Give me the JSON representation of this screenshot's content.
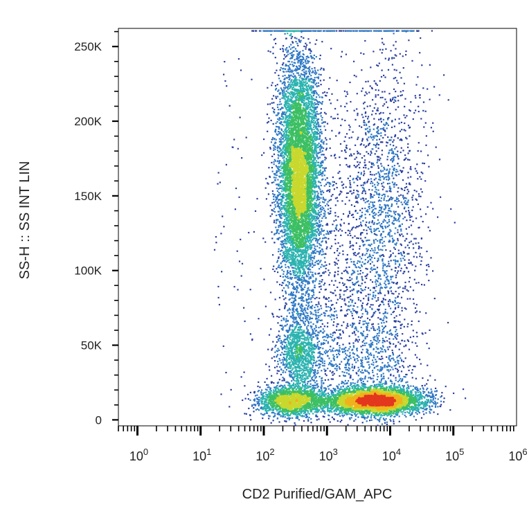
{
  "chart_data": {
    "type": "scatter",
    "title": "",
    "xlabel": "CD2 Purified/GAM_APC",
    "ylabel": "SS-H :: SS INT LIN",
    "x_scale": "log",
    "xlim": [
      0.5,
      1000000
    ],
    "ylim": [
      -4000,
      262144
    ],
    "x_ticks": [
      {
        "value": 1,
        "base": "10",
        "exp": "0"
      },
      {
        "value": 10,
        "base": "10",
        "exp": "1"
      },
      {
        "value": 100,
        "base": "10",
        "exp": "2"
      },
      {
        "value": 1000,
        "base": "10",
        "exp": "3"
      },
      {
        "value": 10000,
        "base": "10",
        "exp": "4"
      },
      {
        "value": 100000,
        "base": "10",
        "exp": "5"
      },
      {
        "value": 1000000,
        "base": "10",
        "exp": "6"
      }
    ],
    "y_ticks": [
      {
        "value": 0,
        "label": "0"
      },
      {
        "value": 50000,
        "label": "50K"
      },
      {
        "value": 100000,
        "label": "100K"
      },
      {
        "value": 150000,
        "label": "150K"
      },
      {
        "value": 200000,
        "label": "200K"
      },
      {
        "value": 250000,
        "label": "250K"
      }
    ],
    "density_colors": [
      "#2b3f9e",
      "#2f78c4",
      "#2bb3b0",
      "#3cbf63",
      "#c8d82e",
      "#f0b21c",
      "#e3371e"
    ],
    "populations": [
      {
        "name": "",
        "x_center_log": 2.55,
        "x_sd_log": 0.17,
        "y_center": 165000,
        "y_sd": 40000,
        "count": 7000
      },
      {
        "name": "",
        "x_center_log": 2.55,
        "x_sd_log": 0.18,
        "y_center": 45000,
        "y_sd": 15000,
        "count": 1200
      },
      {
        "name": "",
        "x_center_log": 2.45,
        "x_sd_log": 0.28,
        "y_center": 13000,
        "y_sd": 5000,
        "count": 1800
      },
      {
        "name": "",
        "x_center_log": 3.75,
        "x_sd_log": 0.38,
        "y_center": 13000,
        "y_sd": 4500,
        "count": 4200
      },
      {
        "name": "",
        "x_center_log": 3.85,
        "x_sd_log": 0.35,
        "y_center": 140000,
        "y_sd": 55000,
        "count": 1700
      },
      {
        "name": "",
        "x_center_log": 3.7,
        "x_sd_log": 0.35,
        "y_center": 40000,
        "y_sd": 18000,
        "count": 500
      },
      {
        "name": "",
        "x_center_log": 3.1,
        "x_sd_log": 0.25,
        "y_center": 80000,
        "y_sd": 45000,
        "count": 500
      }
    ],
    "saturation_line": {
      "y_value": 261000,
      "x_from_log": 1.8,
      "x_to_log": 4.45
    },
    "grid": false,
    "legend": "none"
  }
}
